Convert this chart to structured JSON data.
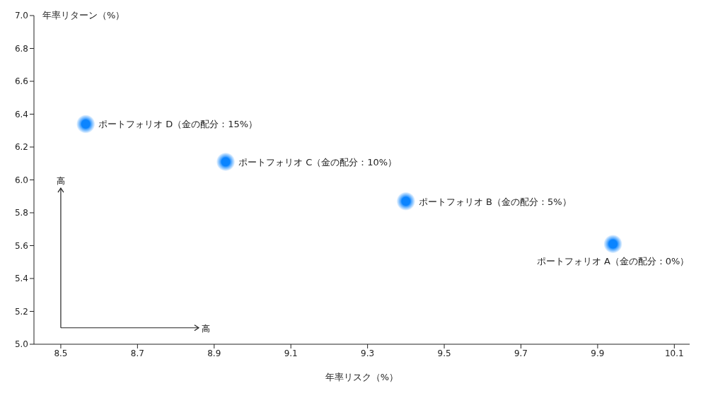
{
  "chart_data": {
    "type": "scatter",
    "xlabel": "年率リスク（%）",
    "ylabel": "年率リターン（%）",
    "x": [
      9.94,
      9.4,
      8.93,
      8.565
    ],
    "values": [
      5.61,
      5.87,
      6.11,
      6.34
    ],
    "color": "#0a84ff",
    "marker": "circle",
    "grid": false,
    "legend": false,
    "xlim": [
      8.43,
      10.14
    ],
    "xticks": [
      8.5,
      8.7,
      8.9,
      9.1,
      9.3,
      9.5,
      9.7,
      9.9,
      10.1
    ],
    "ylim": [
      5.0,
      7.0
    ],
    "yticks": [
      {
        "value": 5.0,
        "label": "5.0"
      },
      5.2,
      5.4,
      5.6,
      5.8,
      {
        "value": 6.0,
        "label": "6.0"
      },
      6.2,
      6.4,
      6.6,
      6.8,
      {
        "value": 7.0,
        "label": "7.0"
      }
    ],
    "annotations": [
      "高",
      "高",
      {
        "text": "ポートフォリオ A（金の配分：0%）",
        "x": 9.94,
        "y": 5.61
      },
      {
        "text": "ポートフォリオ B（金の配分：5%）",
        "x": 9.4,
        "y": 5.87
      },
      {
        "text": "ポートフォリオ C（金の配分：10%）",
        "x": 8.93,
        "y": 6.11
      },
      {
        "text": "ポートフォリオ D（金の配分：15%）",
        "x": 8.565,
        "y": 6.34
      }
    ]
  }
}
